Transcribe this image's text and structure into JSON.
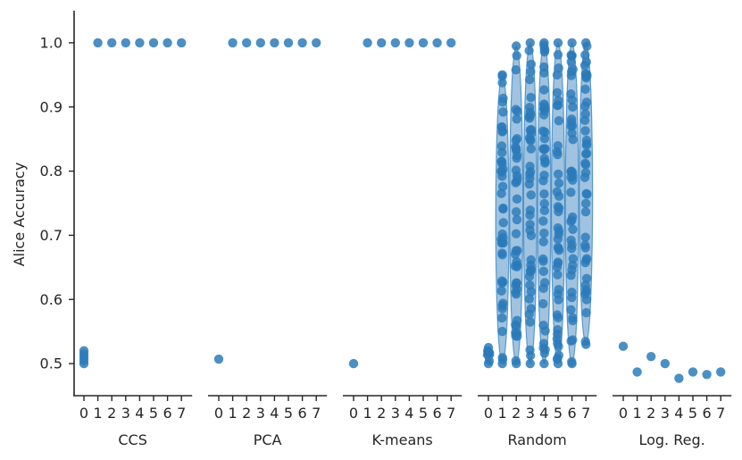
{
  "chart_data": {
    "type": "scatter",
    "ylabel": "Alice Accuracy",
    "ylim": [
      0.45,
      1.05
    ],
    "yticks": [
      "0.5",
      "0.6",
      "0.7",
      "0.8",
      "0.9",
      "1.0"
    ],
    "x_ticks": [
      "0",
      "1",
      "2",
      "3",
      "4",
      "5",
      "6",
      "7"
    ],
    "color": "#2b7bba",
    "grid": false,
    "panels": [
      {
        "label": "CCS",
        "points": [
          [
            0,
            [
              0.5,
              0.505,
              0.51,
              0.515,
              0.52
            ]
          ],
          [
            1,
            [
              1.0
            ]
          ],
          [
            2,
            [
              1.0
            ]
          ],
          [
            3,
            [
              1.0
            ]
          ],
          [
            4,
            [
              1.0
            ]
          ],
          [
            5,
            [
              1.0
            ]
          ],
          [
            6,
            [
              1.0
            ]
          ],
          [
            7,
            [
              1.0
            ]
          ]
        ]
      },
      {
        "label": "PCA",
        "points": [
          [
            0,
            [
              0.507
            ]
          ],
          [
            1,
            [
              1.0
            ]
          ],
          [
            2,
            [
              1.0
            ]
          ],
          [
            3,
            [
              1.0
            ]
          ],
          [
            4,
            [
              1.0
            ]
          ],
          [
            5,
            [
              1.0
            ]
          ],
          [
            6,
            [
              1.0
            ]
          ],
          [
            7,
            [
              1.0
            ]
          ]
        ]
      },
      {
        "label": "K-means",
        "points": [
          [
            0,
            [
              0.5
            ]
          ],
          [
            1,
            [
              1.0
            ]
          ],
          [
            2,
            [
              1.0
            ]
          ],
          [
            3,
            [
              1.0
            ]
          ],
          [
            4,
            [
              1.0
            ]
          ],
          [
            5,
            [
              1.0
            ]
          ],
          [
            6,
            [
              1.0
            ]
          ],
          [
            7,
            [
              1.0
            ]
          ]
        ]
      },
      {
        "label": "Random",
        "violins": [
          {
            "x": 0,
            "min": 0.5,
            "max": 0.525
          },
          {
            "x": 1,
            "min": 0.5,
            "max": 0.95
          },
          {
            "x": 2,
            "min": 0.5,
            "max": 0.995
          },
          {
            "x": 3,
            "min": 0.5,
            "max": 1.0
          },
          {
            "x": 4,
            "min": 0.5,
            "max": 1.0
          },
          {
            "x": 5,
            "min": 0.5,
            "max": 1.0
          },
          {
            "x": 6,
            "min": 0.5,
            "max": 1.0
          },
          {
            "x": 7,
            "min": 0.53,
            "max": 1.0
          }
        ]
      },
      {
        "label": "Log. Reg.",
        "points": [
          [
            0,
            [
              0.527
            ]
          ],
          [
            1,
            [
              0.487
            ]
          ],
          [
            2,
            [
              0.511
            ]
          ],
          [
            3,
            [
              0.5
            ]
          ],
          [
            4,
            [
              0.477
            ]
          ],
          [
            5,
            [
              0.487
            ]
          ],
          [
            6,
            [
              0.483
            ]
          ],
          [
            7,
            [
              0.487
            ]
          ]
        ]
      }
    ]
  }
}
